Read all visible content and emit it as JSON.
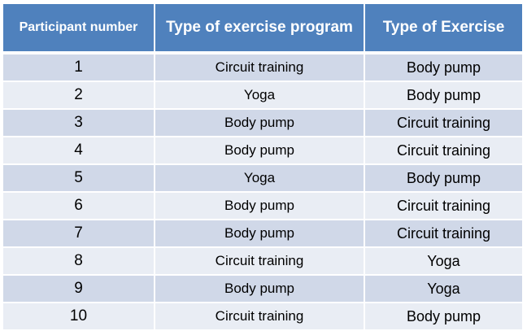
{
  "table": {
    "headers": [
      "Participant number",
      "Type of exercise program",
      "Type of Exercise"
    ],
    "rows": [
      {
        "participant": "1",
        "program": "Circuit training",
        "exercise": "Body pump"
      },
      {
        "participant": "2",
        "program": "Yoga",
        "exercise": "Body pump"
      },
      {
        "participant": "3",
        "program": "Body pump",
        "exercise": "Circuit training"
      },
      {
        "participant": "4",
        "program": "Body pump",
        "exercise": "Circuit training"
      },
      {
        "participant": "5",
        "program": "Yoga",
        "exercise": "Body pump"
      },
      {
        "participant": "6",
        "program": "Body pump",
        "exercise": "Circuit training"
      },
      {
        "participant": "7",
        "program": "Body pump",
        "exercise": "Circuit training"
      },
      {
        "participant": "8",
        "program": "Circuit training",
        "exercise": "Yoga"
      },
      {
        "participant": "9",
        "program": "Body pump",
        "exercise": "Yoga"
      },
      {
        "participant": "10",
        "program": "Circuit training",
        "exercise": "Body pump"
      }
    ]
  },
  "colors": {
    "header_bg": "#4f81bd",
    "row_dark": "#d0d8e8",
    "row_light": "#e9edf4"
  }
}
